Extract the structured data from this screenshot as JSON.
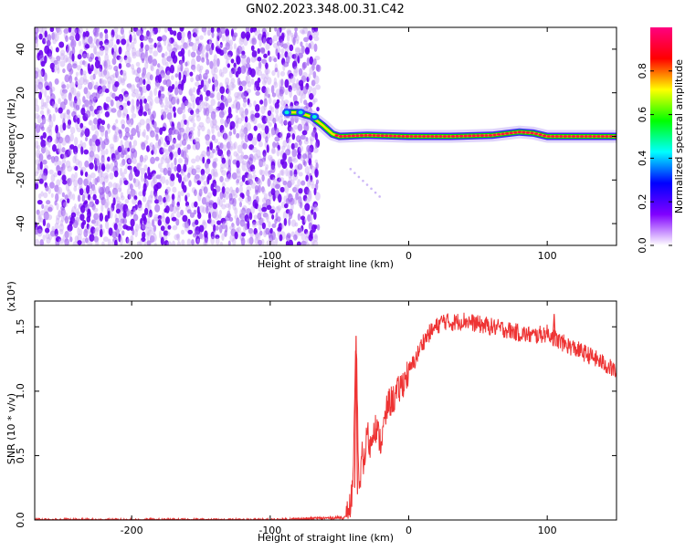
{
  "title": "GN02.2023.348.00.31.C42",
  "chart_data": [
    {
      "type": "heatmap",
      "xlabel": "Height of straight line (km)",
      "ylabel": "Frequency (Hz)",
      "xlim": [
        -270,
        150
      ],
      "ylim": [
        -50,
        50
      ],
      "xticks": [
        -200,
        -100,
        0,
        100
      ],
      "xtick_labels": [
        "-200",
        "-100",
        "0",
        "100"
      ],
      "yticks": [
        -40,
        -20,
        0,
        20,
        40
      ],
      "ytick_labels": [
        "-40",
        "-20",
        "0",
        "20",
        "40"
      ],
      "colorbar": {
        "label": "Normalized spectral amplitude",
        "range": [
          0,
          1
        ],
        "ticks": [
          0.0,
          0.2,
          0.4,
          0.6,
          0.8
        ],
        "tick_labels": [
          "0.0",
          "0.2",
          "0.4",
          "0.6",
          "0.8"
        ],
        "colors": [
          "#ffffff",
          "#8000ff",
          "#0000ff",
          "#00ffff",
          "#00ff00",
          "#ffff00",
          "#ff0000",
          "#ff0080"
        ]
      },
      "noise_region_x": [
        -270,
        -65
      ],
      "ridge": {
        "x": [
          -90,
          -80,
          -70,
          -62,
          -55,
          -50,
          -30,
          0,
          30,
          60,
          80,
          90,
          100,
          120,
          150
        ],
        "y": [
          11,
          11,
          9,
          5,
          1,
          0,
          0.5,
          0,
          0,
          0.5,
          2,
          1.5,
          0,
          0,
          0
        ]
      },
      "grid": false
    },
    {
      "type": "line",
      "xlabel": "Height of straight line (km)",
      "ylabel": "SNR (10 * v/v)",
      "yscale_label": "(x10⁴)",
      "xlim": [
        -270,
        150
      ],
      "ylim": [
        0,
        1.7
      ],
      "xticks": [
        -200,
        -100,
        0,
        100
      ],
      "xtick_labels": [
        "-200",
        "-100",
        "0",
        "100"
      ],
      "yticks": [
        0,
        0.5,
        1.0,
        1.5
      ],
      "ytick_labels": [
        "0.0",
        "0.5",
        "1.0",
        "1.5"
      ],
      "color": "#ee3333",
      "series": [
        {
          "x": [
            -270,
            -200,
            -100,
            -45,
            -42,
            -40,
            -38,
            -36,
            -35,
            -34,
            -32,
            -30,
            -28,
            -25,
            -20,
            -15,
            -10,
            -5,
            0,
            5,
            10,
            15,
            20,
            25,
            30,
            40,
            50,
            60,
            70,
            80,
            90,
            100,
            110,
            120,
            130,
            140,
            150
          ],
          "values": [
            0.0,
            0.0,
            0.0,
            0.02,
            0.12,
            0.3,
            1.43,
            0.3,
            0.2,
            0.5,
            0.45,
            0.7,
            0.55,
            0.75,
            0.6,
            0.9,
            0.95,
            1.05,
            1.15,
            1.25,
            1.38,
            1.45,
            1.5,
            1.55,
            1.53,
            1.55,
            1.52,
            1.5,
            1.48,
            1.45,
            1.43,
            1.45,
            1.38,
            1.33,
            1.28,
            1.22,
            1.15
          ]
        }
      ],
      "grid": false
    }
  ]
}
